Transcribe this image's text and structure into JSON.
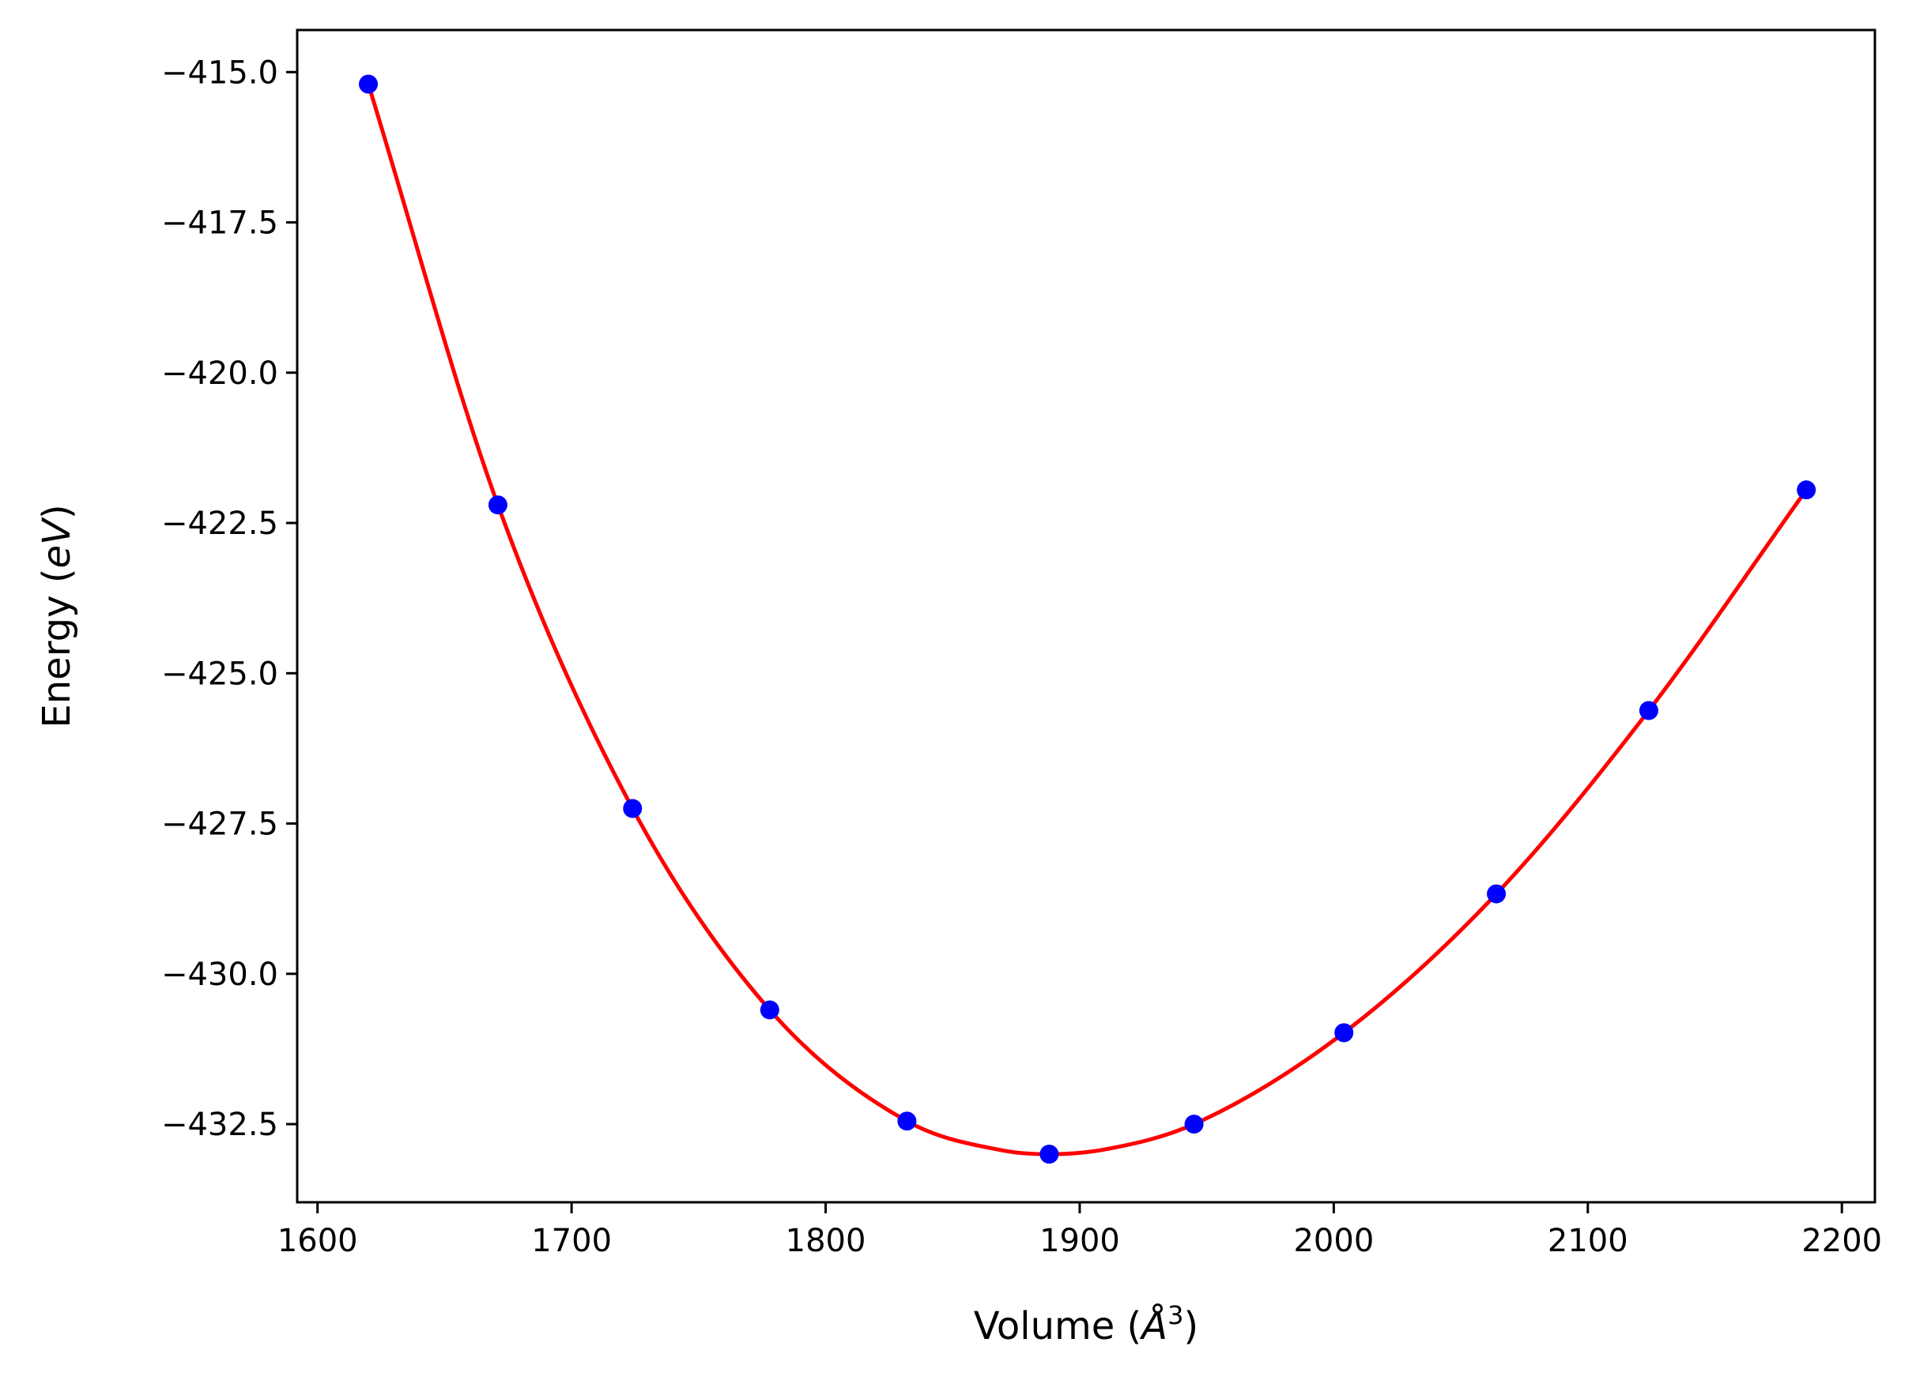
{
  "chart_data": {
    "type": "scatter",
    "xlabel": "Volume (Å³)",
    "xlabel_parts": {
      "prefix": "Volume (",
      "symbol": "Å",
      "superscript": "3",
      "suffix": ")"
    },
    "ylabel": "Energy (eV)",
    "ylabel_parts": {
      "prefix": "Energy (",
      "unit": "eV",
      "suffix": ")"
    },
    "xlim": [
      1592,
      2213
    ],
    "ylim": [
      -433.8,
      -414.3
    ],
    "x_ticks": [
      1600,
      1700,
      1800,
      1900,
      2000,
      2100,
      2200
    ],
    "x_tick_labels": [
      "1600",
      "1700",
      "1800",
      "1900",
      "2000",
      "2100",
      "2200"
    ],
    "y_ticks": [
      -415.0,
      -417.5,
      -420.0,
      -422.5,
      -425.0,
      -427.5,
      -430.0,
      -432.5
    ],
    "y_tick_labels": [
      "−415.0",
      "−417.5",
      "−420.0",
      "−422.5",
      "−425.0",
      "−427.5",
      "−430.0",
      "−432.5"
    ],
    "grid": false,
    "series": [
      {
        "kind": "points",
        "color": "#0000ff",
        "x": [
          1620,
          1671,
          1724,
          1778,
          1832,
          1888,
          1945,
          2004,
          2064,
          2124,
          2186
        ],
        "y": [
          -415.2,
          -422.2,
          -427.25,
          -430.6,
          -432.45,
          -433.0,
          -432.5,
          -430.98,
          -428.67,
          -425.62,
          -421.95
        ]
      },
      {
        "kind": "fit-curve",
        "color": "#ff0000",
        "x": [
          1620,
          1671,
          1724,
          1778,
          1832,
          1870,
          1888,
          1910,
          1945,
          2004,
          2064,
          2124,
          2186
        ],
        "y": [
          -415.2,
          -422.2,
          -427.25,
          -430.6,
          -432.45,
          -432.94,
          -433.0,
          -432.92,
          -432.5,
          -430.98,
          -428.67,
          -425.62,
          -421.95
        ]
      }
    ]
  }
}
